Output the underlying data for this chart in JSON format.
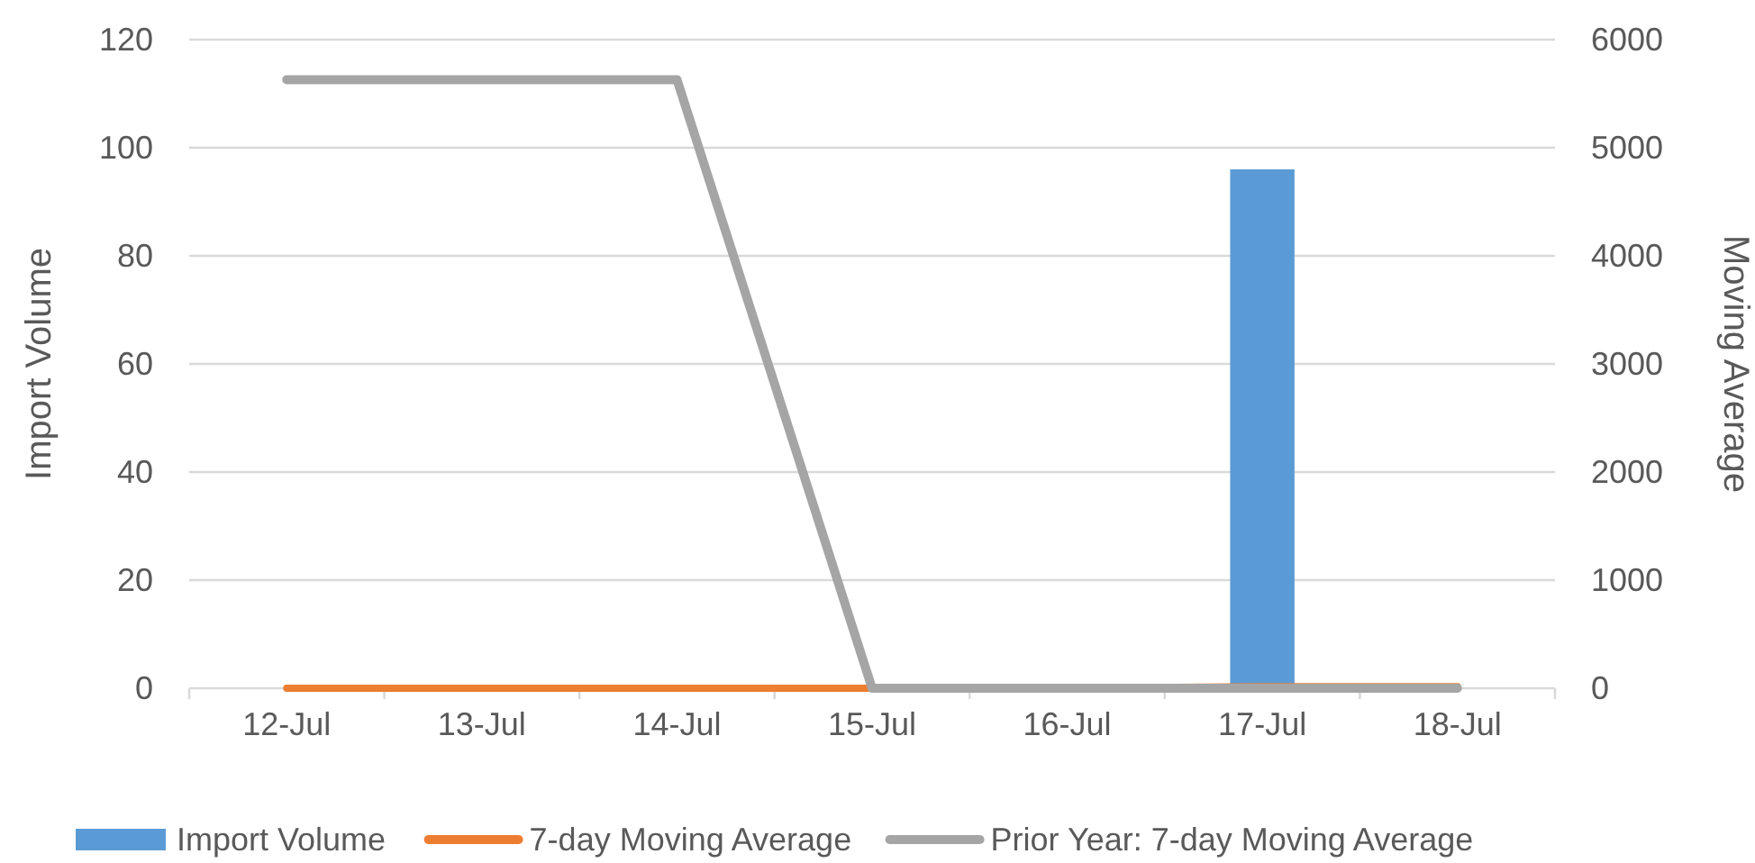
{
  "chart_data": {
    "type": "bar",
    "categories": [
      "12-Jul",
      "13-Jul",
      "14-Jul",
      "15-Jul",
      "16-Jul",
      "17-Jul",
      "18-Jul"
    ],
    "series": [
      {
        "name": "Import Volume",
        "color": "#5b9bd5",
        "values": [
          0,
          0,
          0,
          0,
          0,
          96,
          0
        ]
      },
      {
        "name": "7-day Moving Average",
        "type": "line",
        "axis": "y2",
        "color": "#ed7d31",
        "values": [
          0,
          0,
          0,
          0,
          0,
          14,
          14
        ]
      },
      {
        "name": "Prior Year: 7-day Moving Average",
        "type": "line",
        "axis": "y2",
        "color": "#a5a5a5",
        "values": [
          5630,
          5630,
          5630,
          0,
          0,
          0,
          0
        ]
      }
    ],
    "ylabel": "Import Volume",
    "y2label": "Moving Average",
    "ylim": [
      0,
      120
    ],
    "yticks": [
      0,
      20,
      40,
      60,
      80,
      100,
      120
    ],
    "y2lim": [
      0,
      6000
    ],
    "y2ticks": [
      0,
      1000,
      2000,
      3000,
      4000,
      5000,
      6000
    ],
    "grid": "y",
    "legend": "bottom"
  }
}
